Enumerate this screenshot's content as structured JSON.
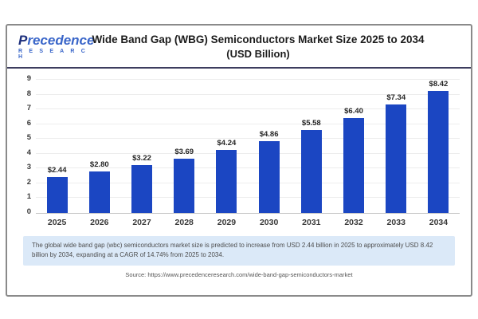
{
  "logo": {
    "brand": "Precedence",
    "sub": "R E S E A R C H"
  },
  "chart_data": {
    "type": "bar",
    "title": "Wide Band Gap (WBG) Semiconductors Market Size 2025 to 2034",
    "subtitle": "(USD Billion)",
    "categories": [
      "2025",
      "2026",
      "2027",
      "2028",
      "2029",
      "2030",
      "2031",
      "2032",
      "2033",
      "2034"
    ],
    "values": [
      2.44,
      2.8,
      3.22,
      3.69,
      4.24,
      4.86,
      5.58,
      6.4,
      7.34,
      8.42
    ],
    "value_labels": [
      "$2.44",
      "$2.80",
      "$3.22",
      "$3.69",
      "$4.24",
      "$4.86",
      "$5.58",
      "$6.40",
      "$7.34",
      "$8.42"
    ],
    "xlabel": "",
    "ylabel": "",
    "ylim": [
      0,
      9
    ],
    "yticks": [
      0,
      1,
      2,
      3,
      4,
      5,
      6,
      7,
      8,
      9
    ],
    "grid": "horizontal",
    "legend": "none",
    "bar_color": "#1B46C2"
  },
  "note": {
    "text": "The global wide band gap (wbc) semiconductors market size is predicted to increase from USD 2.44 billion in 2025 to approximately USD 8.42 billion by 2034, expanding at a CAGR of 14.74% from 2025 to 2034."
  },
  "source": {
    "text": "Source: https://www.precedenceresearch.com/wide-band-gap-semiconductors-market"
  },
  "colors": {
    "bar": "#1B46C2",
    "note_bg": "#dbe9f8",
    "header_rule": "#3c3c5e",
    "card_border": "#8a8a8a",
    "logo_blue": "#3a66c9",
    "logo_navy": "#1d2f7c"
  }
}
